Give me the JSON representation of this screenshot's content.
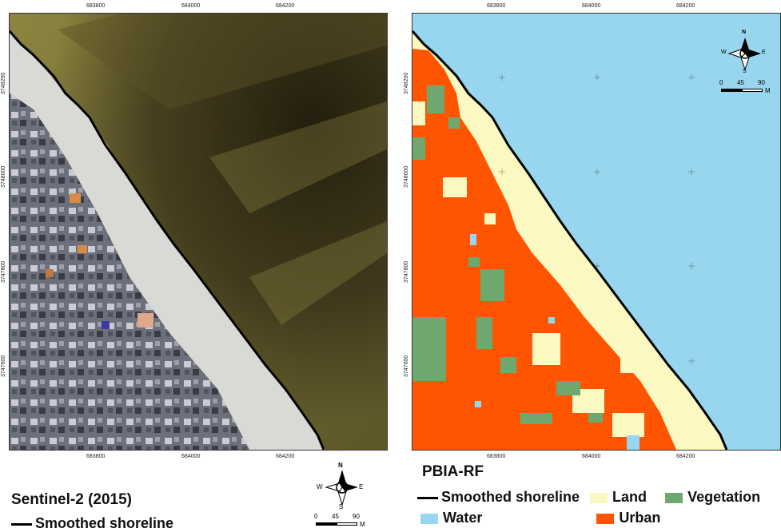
{
  "left_panel": {
    "x_ticks": [
      "683800",
      "684000",
      "684200"
    ],
    "y_ticks": [
      "3748200",
      "3748000",
      "3747800",
      "3747600"
    ],
    "title": "Sentinel-2 (2015)",
    "legend": {
      "shoreline_label": "Smoothed shoreline"
    },
    "north_arrow": {
      "n": "N",
      "s": "S",
      "e": "E",
      "w": "W"
    },
    "scale_bar": {
      "labels": [
        "0",
        "45",
        "90"
      ],
      "unit": "M"
    }
  },
  "right_panel": {
    "x_ticks": [
      "683800",
      "684000",
      "684200"
    ],
    "y_ticks": [
      "3748200",
      "3748000",
      "3747800",
      "3747600"
    ],
    "title": "PBIA-RF",
    "legend": {
      "shoreline_label": "Smoothed shoreline",
      "classes": [
        {
          "label": "Land",
          "color": "#fcf8c2"
        },
        {
          "label": "Vegetation",
          "color": "#6fa86f"
        },
        {
          "label": "Water",
          "color": "#97d6ee"
        },
        {
          "label": "Urban",
          "color": "#ff5500"
        }
      ]
    },
    "north_arrow": {
      "n": "N",
      "s": "S",
      "e": "E",
      "w": "W"
    },
    "scale_bar": {
      "labels": [
        "0",
        "45",
        "90"
      ],
      "unit": "M"
    }
  },
  "colors": {
    "sea_image": "#7a7436",
    "sea_dark": "#2a2412",
    "beach_image": "#d8d8d4",
    "urban_image": "#6f7280",
    "water_class": "#97d6ee",
    "land_class": "#fcf8c2",
    "urban_class": "#ff5500",
    "vegetation_class": "#6fa86f",
    "shoreline": "#000000"
  }
}
